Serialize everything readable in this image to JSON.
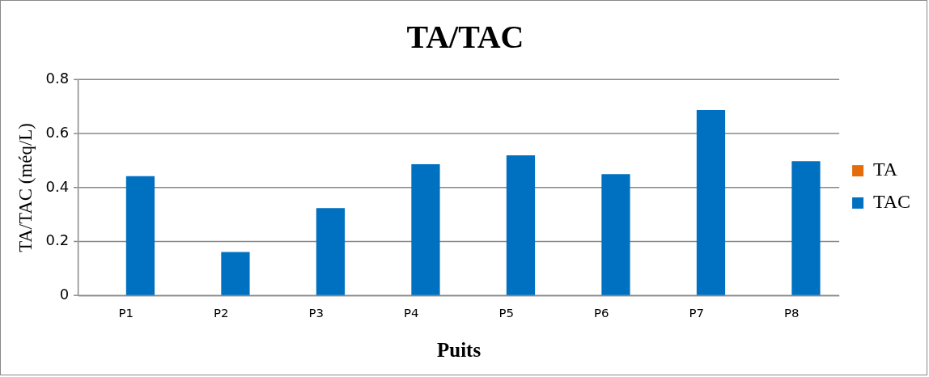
{
  "chart_data": {
    "type": "bar",
    "title": "TA/TAC",
    "xlabel": "Puits",
    "ylabel": "TA/TAC (méq/L)",
    "categories": [
      "P1",
      "P2",
      "P3",
      "P4",
      "P5",
      "P6",
      "P7",
      "P8"
    ],
    "series": [
      {
        "name": "TA",
        "color": "#e46c0a",
        "values": [
          0,
          0,
          0,
          0,
          0,
          0,
          0,
          0
        ]
      },
      {
        "name": "TAC",
        "color": "#0070c0",
        "values": [
          0.443,
          0.162,
          0.324,
          0.487,
          0.52,
          0.45,
          0.688,
          0.498
        ]
      }
    ],
    "ylim": [
      0,
      0.8
    ],
    "yticks": [
      0,
      0.2,
      0.4,
      0.6,
      0.8
    ],
    "grid": "y",
    "legend": "right"
  }
}
